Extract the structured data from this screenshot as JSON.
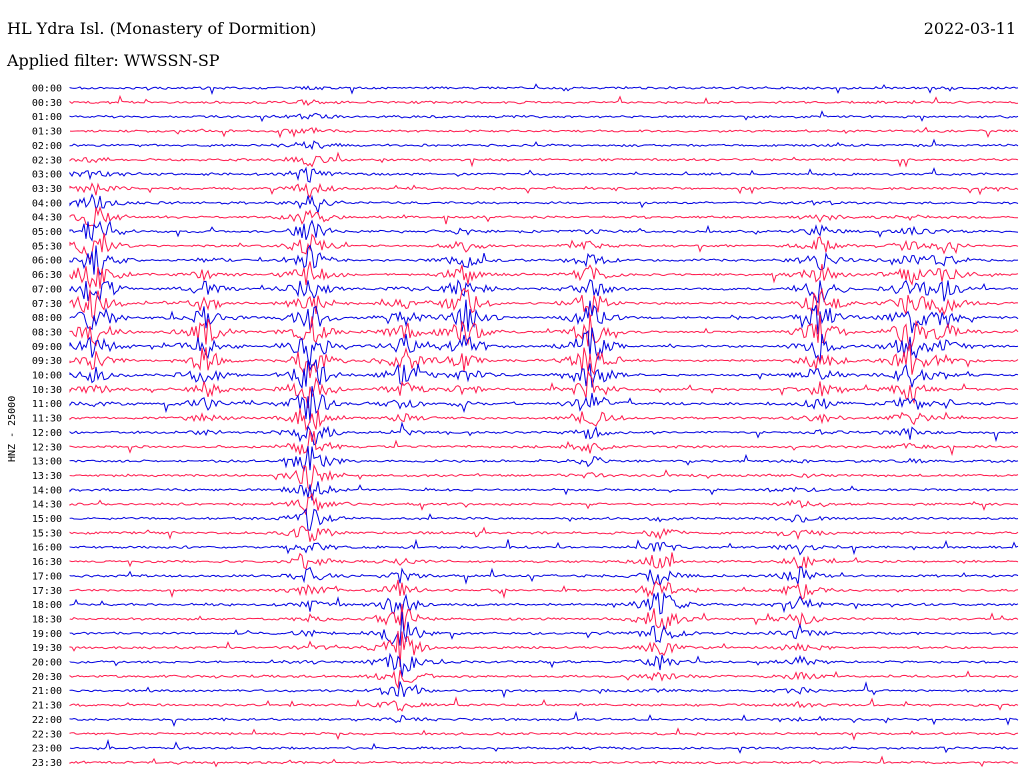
{
  "header": {
    "title": "HL Ydra Isl. (Monastery of Dormition)",
    "date": "2022-03-11",
    "filter": "Applied filter: WWSSN-SP"
  },
  "chart_data": {
    "type": "line",
    "ylabel": "HNZ - 25000",
    "row_labels": [
      "00:00",
      "00:30",
      "01:00",
      "01:30",
      "02:00",
      "02:30",
      "03:00",
      "03:30",
      "04:00",
      "04:30",
      "05:00",
      "05:30",
      "06:00",
      "06:30",
      "07:00",
      "07:30",
      "08:00",
      "08:30",
      "09:00",
      "09:30",
      "10:00",
      "10:30",
      "11:00",
      "11:30",
      "12:00",
      "12:30",
      "13:00",
      "13:30",
      "14:00",
      "14:30",
      "15:00",
      "15:30",
      "16:00",
      "16:30",
      "17:00",
      "17:30",
      "18:00",
      "18:30",
      "19:00",
      "19:30",
      "20:00",
      "20:30",
      "21:00",
      "21:30",
      "22:00",
      "22:30",
      "23:00",
      "23:30"
    ],
    "colors": [
      "#0000e0",
      "#ff1a4d"
    ],
    "grid": false
  }
}
